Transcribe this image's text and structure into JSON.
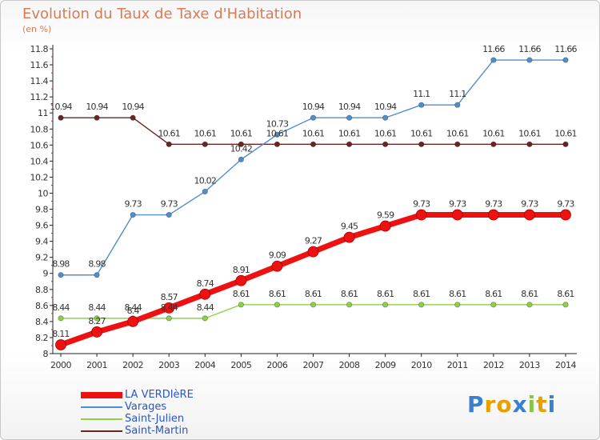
{
  "title": "Evolution du Taux de Taxe d'Habitation",
  "subtitle": "(en %)",
  "chart_data": {
    "type": "line",
    "x": [
      "2000",
      "2001",
      "2002",
      "2003",
      "2004",
      "2005",
      "2006",
      "2007",
      "2008",
      "2009",
      "2010",
      "2011",
      "2012",
      "2013",
      "2014"
    ],
    "ylim": [
      8,
      11.8
    ],
    "yticks": [
      "8",
      "8.2",
      "8.4",
      "8.6",
      "8.8",
      "9",
      "9.2",
      "9.4",
      "9.6",
      "9.8",
      "10",
      "10.2",
      "10.4",
      "10.6",
      "10.8",
      "11",
      "11.2",
      "11.4",
      "11.6",
      "11.8"
    ],
    "grid": false,
    "legend_position": "bottom-left",
    "series": [
      {
        "name": "Saint-Martin",
        "color": "#6b2424",
        "values": [
          10.94,
          10.94,
          10.94,
          10.61,
          10.61,
          10.61,
          10.61,
          10.61,
          10.61,
          10.61,
          10.61,
          10.61,
          10.61,
          10.61,
          10.61
        ],
        "labels": [
          "10.94",
          "10.94",
          "10.94",
          "10.61",
          "10.61",
          "10.61",
          "10.61",
          "10.61",
          "10.61",
          "10.61",
          "10.61",
          "10.61",
          "10.61",
          "10.61",
          "10.61"
        ]
      },
      {
        "name": "Varages",
        "color": "#4f8fcf",
        "values": [
          8.98,
          8.98,
          9.73,
          9.73,
          10.02,
          10.42,
          10.73,
          10.94,
          10.94,
          10.94,
          11.1,
          11.1,
          11.66,
          11.66,
          11.66
        ],
        "labels": [
          "8.98",
          "8.98",
          "9.73",
          "9.73",
          "10.02",
          "10.42",
          "10.73",
          "10.94",
          "10.94",
          "10.94",
          "11.1",
          "11.1",
          "11.66",
          "11.66",
          "11.66"
        ]
      },
      {
        "name": "Saint-Julien",
        "color": "#8fd04a",
        "values": [
          8.44,
          8.44,
          8.44,
          8.44,
          8.44,
          8.61,
          8.61,
          8.61,
          8.61,
          8.61,
          8.61,
          8.61,
          8.61,
          8.61,
          8.61
        ],
        "labels": [
          "8.44",
          "8.44",
          "8.44",
          "8.44",
          "8.44",
          "8.61",
          "8.61",
          "8.61",
          "8.61",
          "8.61",
          "8.61",
          "8.61",
          "8.61",
          "8.61",
          "8.61"
        ]
      },
      {
        "name": "LA VERDIèRE",
        "color": "#ee1111",
        "values": [
          8.11,
          8.27,
          8.4,
          8.57,
          8.74,
          8.91,
          9.09,
          9.27,
          9.45,
          9.59,
          9.73,
          9.73,
          9.73,
          9.73,
          9.73
        ],
        "labels": [
          "8.11",
          "8.27",
          "8.4",
          "8.57",
          "8.74",
          "8.91",
          "9.09",
          "9.27",
          "9.45",
          "9.59",
          "9.73",
          "9.73",
          "9.73",
          "9.73",
          "9.73"
        ]
      }
    ]
  },
  "legend": [
    {
      "label": "LA VERDIèRE",
      "color": "#ee1111"
    },
    {
      "label": "Varages",
      "color": "#4f8fcf"
    },
    {
      "label": "Saint-Julien",
      "color": "#8fd04a"
    },
    {
      "label": "Saint-Martin",
      "color": "#6b2424"
    }
  ],
  "logo": {
    "letters": [
      "P",
      "r",
      "o",
      "x",
      "i",
      "t",
      "i"
    ],
    "colors": [
      "#3b7fd0",
      "#e8a000",
      "#e8a000",
      "#3b7fd0",
      "#8bc34a",
      "#e8a000",
      "#3b7fd0"
    ]
  }
}
